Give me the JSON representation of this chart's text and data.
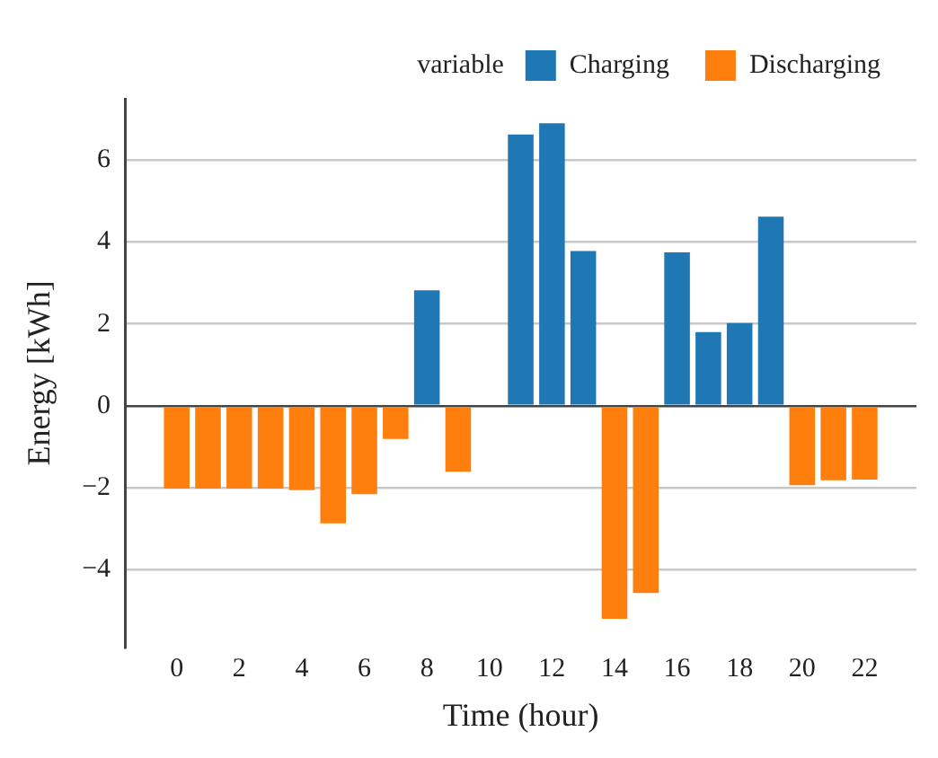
{
  "chart_data": {
    "type": "bar",
    "xlabel": "Time (hour)",
    "ylabel": "Energy [kWh]",
    "legend_title": "variable",
    "legend": "top right",
    "stacked": true,
    "grid": "y",
    "x": [
      0,
      1,
      2,
      3,
      4,
      5,
      6,
      7,
      8,
      9,
      10,
      11,
      12,
      13,
      14,
      15,
      16,
      17,
      18,
      19,
      20,
      21,
      22
    ],
    "series": [
      {
        "name": "Charging",
        "color": "#1f77b4",
        "values": [
          null,
          null,
          null,
          null,
          null,
          null,
          null,
          null,
          2.82,
          null,
          null,
          6.63,
          6.9,
          3.78,
          null,
          null,
          3.75,
          1.8,
          2.02,
          4.62,
          null,
          null,
          null
        ]
      },
      {
        "name": "Discharging",
        "color": "#ff7f0e",
        "values": [
          -2.02,
          -2.02,
          -2.02,
          -2.02,
          -2.06,
          -2.87,
          -2.16,
          -0.81,
          null,
          -1.61,
          null,
          null,
          null,
          null,
          -5.2,
          -4.57,
          null,
          null,
          null,
          null,
          -1.94,
          -1.82,
          -1.8
        ]
      }
    ],
    "xlim": [
      -0.6,
      22.6
    ],
    "xticks": [
      0,
      2,
      4,
      6,
      8,
      10,
      12,
      14,
      16,
      18,
      20,
      22
    ],
    "ylim": [
      -5.9,
      7.5
    ],
    "yticks": [
      -4,
      -2,
      0,
      2,
      4,
      6
    ]
  }
}
